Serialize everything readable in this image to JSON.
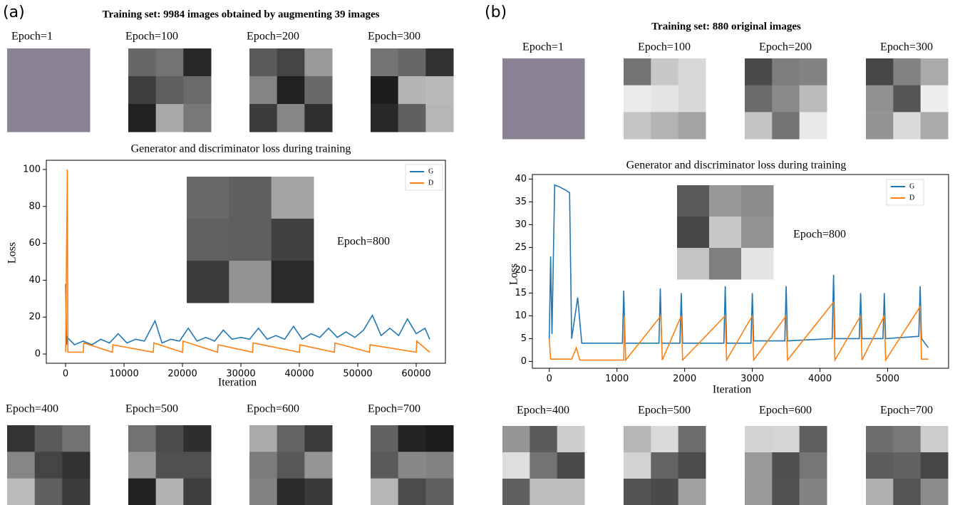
{
  "panels": [
    {
      "label": "(a)",
      "title": "Training set: 9984 images obtained by augmenting 39 images",
      "epochs_top": [
        "Epoch=1",
        "Epoch=100",
        "Epoch=200",
        "Epoch=300"
      ],
      "epochs_bottom": [
        "Epoch=400",
        "Epoch=500",
        "Epoch=600",
        "Epoch=700"
      ],
      "inset_label": "Epoch=800"
    },
    {
      "label": "(b)",
      "title": "Training set: 880 original images",
      "epochs_top": [
        "Epoch=1",
        "Epoch=100",
        "Epoch=200",
        "Epoch=300"
      ],
      "epochs_bottom": [
        "Epoch=400",
        "Epoch=500",
        "Epoch=600",
        "Epoch=700"
      ],
      "inset_label": "Epoch=800"
    }
  ],
  "chart_data": [
    {
      "type": "line",
      "title": "Generator and discriminator loss during training",
      "x_label": "Iteration",
      "y_label": "Loss",
      "xlim": [
        -3300,
        65000
      ],
      "ylim": [
        -5,
        105
      ],
      "xticks": [
        0,
        10000,
        20000,
        30000,
        40000,
        50000,
        60000
      ],
      "yticks": [
        0,
        20,
        40,
        60,
        80,
        100
      ],
      "legend": "upper right",
      "series": [
        {
          "name": "G",
          "color": "#1f77b4",
          "x": [
            0,
            150,
            300,
            1500,
            3000,
            4500,
            6000,
            7500,
            9000,
            10500,
            12000,
            13500,
            15300,
            16500,
            18000,
            19500,
            21000,
            22500,
            24000,
            25500,
            27000,
            28500,
            30000,
            31500,
            33000,
            34500,
            36000,
            37500,
            39000,
            40500,
            42000,
            43500,
            45000,
            46500,
            48000,
            49500,
            51000,
            52500,
            54000,
            55500,
            57000,
            58500,
            60000,
            61500,
            62300
          ],
          "values": [
            38,
            5,
            9,
            5,
            7,
            5,
            8,
            6,
            11,
            6,
            8,
            7,
            18,
            6,
            8,
            7,
            14,
            7,
            9,
            7,
            13,
            8,
            9,
            8,
            14,
            8,
            10,
            8,
            15,
            8,
            11,
            9,
            14,
            9,
            12,
            9,
            13,
            21,
            10,
            14,
            10,
            19,
            11,
            14,
            8
          ]
        },
        {
          "name": "D",
          "color": "#ff7f0e",
          "x": [
            0,
            300,
            400,
            600,
            3000,
            3100,
            8000,
            8100,
            15000,
            15100,
            20000,
            20100,
            26000,
            26100,
            32000,
            32100,
            40000,
            40100,
            46000,
            46100,
            52000,
            52100,
            60000,
            60100,
            62300
          ],
          "values": [
            1,
            100,
            1,
            1,
            1,
            6,
            1,
            5,
            1,
            6,
            1,
            7,
            1,
            5,
            1,
            6,
            1,
            5,
            1,
            6,
            1,
            5,
            1,
            7,
            1
          ]
        }
      ]
    },
    {
      "type": "line",
      "title": "Generator and discriminator loss during training",
      "x_label": "Iteration",
      "y_label": "Loss",
      "xlim": [
        -250,
        5900
      ],
      "ylim": [
        -1.5,
        41
      ],
      "xticks": [
        0,
        1000,
        2000,
        3000,
        4000,
        5000
      ],
      "yticks": [
        0,
        5,
        10,
        15,
        20,
        25,
        30,
        35,
        40
      ],
      "legend": "upper right",
      "series": [
        {
          "name": "G",
          "color": "#1f77b4",
          "x": [
            0,
            20,
            40,
            80,
            150,
            250,
            300,
            330,
            420,
            480,
            700,
            1080,
            1100,
            1120,
            1620,
            1640,
            1660,
            1930,
            1950,
            1970,
            2580,
            2600,
            2620,
            2980,
            3000,
            3020,
            3480,
            3500,
            3520,
            4180,
            4200,
            4220,
            4580,
            4600,
            4620,
            4930,
            4950,
            4970,
            5460,
            5480,
            5500,
            5600
          ],
          "values": [
            5,
            23,
            6,
            38.7,
            38.3,
            37.5,
            37,
            5,
            14,
            4,
            4,
            4,
            15.5,
            4,
            4,
            16,
            4,
            4,
            15,
            4,
            4,
            16.5,
            4,
            4,
            15,
            4.5,
            4.5,
            16.5,
            4.5,
            5,
            19,
            5,
            5,
            15,
            5,
            5,
            15,
            5,
            5.5,
            16.5,
            5,
            3
          ]
        },
        {
          "name": "D",
          "color": "#ff7f0e",
          "x": [
            0,
            20,
            330,
            400,
            450,
            1100,
            1110,
            1130,
            1650,
            1670,
            1950,
            1970,
            2600,
            2620,
            3000,
            3020,
            3500,
            3520,
            4200,
            4220,
            4600,
            4620,
            4950,
            4970,
            5480,
            5500,
            5600
          ],
          "values": [
            5,
            0.5,
            0.5,
            3,
            0.3,
            0.3,
            10,
            0.3,
            10,
            0.3,
            10,
            0.3,
            10,
            0.3,
            10,
            0.3,
            10,
            0.3,
            13,
            0.3,
            10,
            0.3,
            10,
            0.3,
            12,
            0.5,
            0.5
          ]
        }
      ]
    }
  ]
}
